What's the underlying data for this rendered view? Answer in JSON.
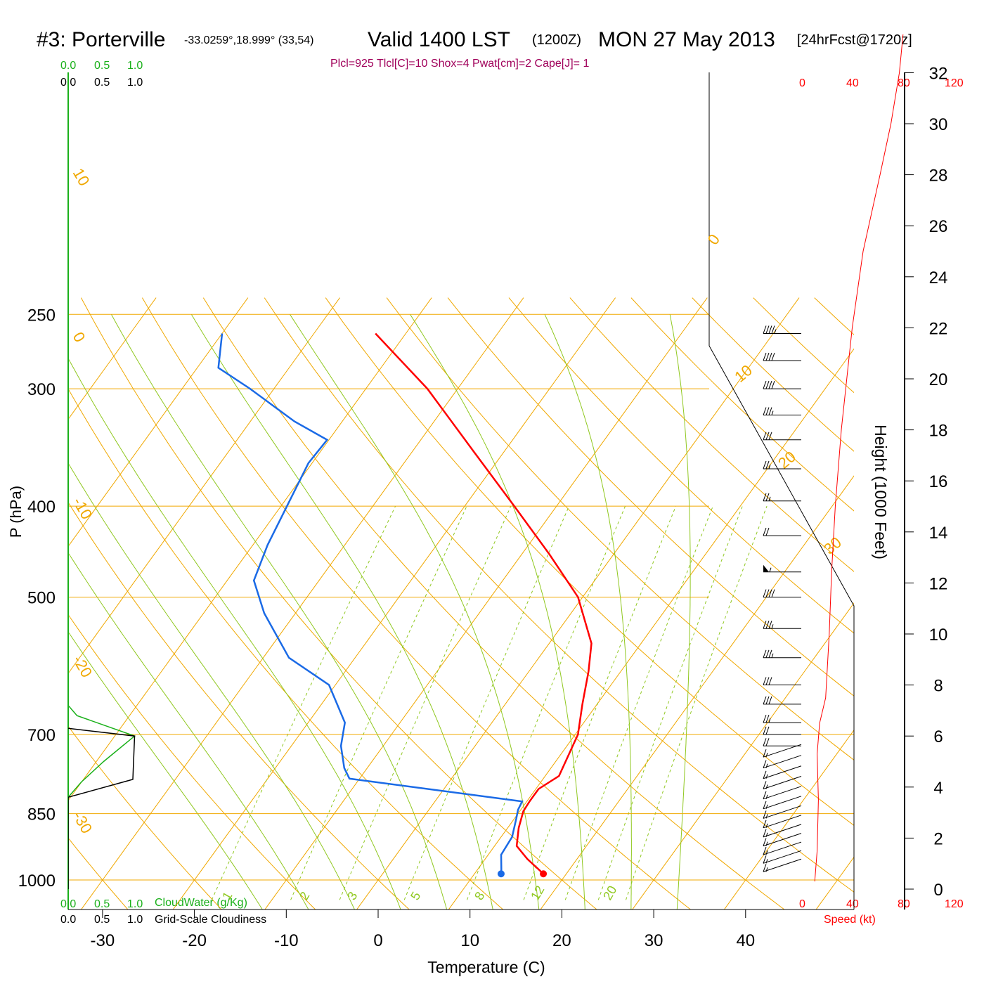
{
  "header": {
    "station": "#3: Porterville",
    "coords": "-33.0259°,18.999° (33,54)",
    "valid": "Valid 1400 LST",
    "zulu": "(1200Z)",
    "date": "MON 27 May 2013",
    "forecast": "[24hrFcst@1720z]"
  },
  "params": "Plcl=925 Tlcl[C]=10 Shox=4 Pwat[cm]=2 Cape[J]= 1",
  "scales": {
    "cloudwater_ticks": [
      "0.0",
      "0.5",
      "1.0"
    ],
    "cloudiness_ticks": [
      "0.0",
      "0.5",
      "1.0"
    ],
    "cloudwater_label": "CloudWater (g/Kg)",
    "cloudiness_label": "Grid-Scale Cloudiness"
  },
  "speed_axis": {
    "ticks": [
      "0",
      "40",
      "80",
      "120"
    ],
    "label": "Speed (kt)"
  },
  "colors": {
    "isotherm": "#f0a800",
    "adiabat": "#90c820",
    "temperature": "#ff0000",
    "dewpoint": "#1a6ae6",
    "cloud_water": "#19b019",
    "speed": "#ff0000",
    "params_text": "#a0005a"
  },
  "chart_data": {
    "type": "line",
    "subtype": "skew-T log-p sounding",
    "xlabel": "Temperature (C)",
    "ylabel": "P (hPa)",
    "y2label": "Height (1000 Feet)",
    "x_ticks": [
      -30,
      -20,
      -10,
      0,
      10,
      20,
      30,
      40
    ],
    "p_ticks": [
      250,
      300,
      400,
      500,
      700,
      850,
      1000
    ],
    "height_ticks": [
      0,
      2,
      4,
      6,
      8,
      10,
      12,
      14,
      16,
      18,
      20,
      22,
      24,
      26,
      28,
      30,
      32
    ],
    "isotherm_labels": [
      "10",
      "0",
      "-10",
      "-20",
      "-30",
      "0",
      "10",
      "20",
      "30"
    ],
    "mixing_ratio_labels": [
      "1",
      "2",
      "3",
      "5",
      "8",
      "12",
      "20"
    ],
    "temperature": [
      {
        "p": 985,
        "t": 17.5
      },
      {
        "p": 950,
        "t": 14.6
      },
      {
        "p": 920,
        "t": 12.4
      },
      {
        "p": 880,
        "t": 11.2
      },
      {
        "p": 845,
        "t": 10.4
      },
      {
        "p": 825,
        "t": 10.3
      },
      {
        "p": 800,
        "t": 10.3
      },
      {
        "p": 775,
        "t": 11.5
      },
      {
        "p": 700,
        "t": 10.3
      },
      {
        "p": 650,
        "t": 8.4
      },
      {
        "p": 600,
        "t": 6.5
      },
      {
        "p": 560,
        "t": 4.6
      },
      {
        "p": 500,
        "t": -0.5
      },
      {
        "p": 450,
        "t": -7.0
      },
      {
        "p": 400,
        "t": -14.6
      },
      {
        "p": 350,
        "t": -23.3
      },
      {
        "p": 300,
        "t": -33.3
      },
      {
        "p": 262,
        "t": -43.3
      }
    ],
    "dewpoint": [
      {
        "p": 985,
        "t": 12.9
      },
      {
        "p": 975,
        "t": 12.6
      },
      {
        "p": 940,
        "t": 11.4
      },
      {
        "p": 900,
        "t": 11.2
      },
      {
        "p": 860,
        "t": 10.2
      },
      {
        "p": 842,
        "t": 9.7
      },
      {
        "p": 825,
        "t": 9.5
      },
      {
        "p": 780,
        "t": -11.1
      },
      {
        "p": 760,
        "t": -12.5
      },
      {
        "p": 720,
        "t": -14.6
      },
      {
        "p": 680,
        "t": -16.0
      },
      {
        "p": 620,
        "t": -20.7
      },
      {
        "p": 580,
        "t": -27.2
      },
      {
        "p": 520,
        "t": -33.4
      },
      {
        "p": 480,
        "t": -37.1
      },
      {
        "p": 440,
        "t": -38.4
      },
      {
        "p": 360,
        "t": -40.4
      },
      {
        "p": 340,
        "t": -40.2
      },
      {
        "p": 325,
        "t": -45.2
      },
      {
        "p": 300,
        "t": -52.6
      },
      {
        "p": 285,
        "t": -57.7
      },
      {
        "p": 262,
        "t": -60.0
      }
    ],
    "surface_temperature_marker": 17.5,
    "surface_dewpoint_marker": 12.9,
    "cloud_water": [
      {
        "h": 0.0,
        "v": 0.0
      },
      {
        "h": 3.6,
        "v": 0.0
      },
      {
        "h": 4.2,
        "v": 0.15
      },
      {
        "h": 5.0,
        "v": 0.4
      },
      {
        "h": 6.0,
        "v": 0.75
      },
      {
        "h": 6.8,
        "v": 0.1
      },
      {
        "h": 7.2,
        "v": 0.0
      }
    ],
    "cloudiness": [
      {
        "h": 0.0,
        "v": 0.0
      },
      {
        "h": 3.6,
        "v": 0.0
      },
      {
        "h": 4.3,
        "v": 0.73
      },
      {
        "h": 6.0,
        "v": 0.75
      },
      {
        "h": 6.3,
        "v": 0.0
      }
    ],
    "wind_speed_profile": [
      {
        "h": 0.3,
        "kt": 10
      },
      {
        "h": 1.5,
        "kt": 12
      },
      {
        "h": 3.5,
        "kt": 13
      },
      {
        "h": 5.3,
        "kt": 12
      },
      {
        "h": 6.5,
        "kt": 14
      },
      {
        "h": 7.5,
        "kt": 19
      },
      {
        "h": 10.0,
        "kt": 22
      },
      {
        "h": 12.5,
        "kt": 24
      },
      {
        "h": 15.0,
        "kt": 27
      },
      {
        "h": 18.0,
        "kt": 32
      },
      {
        "h": 22.0,
        "kt": 41
      },
      {
        "h": 25.0,
        "kt": 50
      },
      {
        "h": 28.0,
        "kt": 64
      },
      {
        "h": 30.0,
        "kt": 73
      },
      {
        "h": 32.0,
        "kt": 80
      },
      {
        "h": 33.5,
        "kt": 83
      }
    ],
    "wind_barbs": [
      {
        "p": 262,
        "kt": 45
      },
      {
        "p": 280,
        "kt": 40
      },
      {
        "p": 300,
        "kt": 40
      },
      {
        "p": 320,
        "kt": 35
      },
      {
        "p": 340,
        "kt": 30
      },
      {
        "p": 365,
        "kt": 25
      },
      {
        "p": 395,
        "kt": 25
      },
      {
        "p": 430,
        "kt": 20
      },
      {
        "p": 470,
        "kt": 55
      },
      {
        "p": 500,
        "kt": 40
      },
      {
        "p": 540,
        "kt": 35
      },
      {
        "p": 580,
        "kt": 35
      },
      {
        "p": 620,
        "kt": 30
      },
      {
        "p": 650,
        "kt": 30
      },
      {
        "p": 680,
        "kt": 25
      },
      {
        "p": 700,
        "kt": 20
      },
      {
        "p": 720,
        "kt": 20
      },
      {
        "p": 740,
        "kt": 15
      },
      {
        "p": 760,
        "kt": 15
      },
      {
        "p": 780,
        "kt": 15
      },
      {
        "p": 800,
        "kt": 15
      },
      {
        "p": 820,
        "kt": 15
      },
      {
        "p": 840,
        "kt": 15
      },
      {
        "p": 860,
        "kt": 15
      },
      {
        "p": 880,
        "kt": 15
      },
      {
        "p": 900,
        "kt": 15
      },
      {
        "p": 920,
        "kt": 15
      },
      {
        "p": 940,
        "kt": 15
      },
      {
        "p": 960,
        "kt": 15
      },
      {
        "p": 980,
        "kt": 15
      }
    ]
  }
}
